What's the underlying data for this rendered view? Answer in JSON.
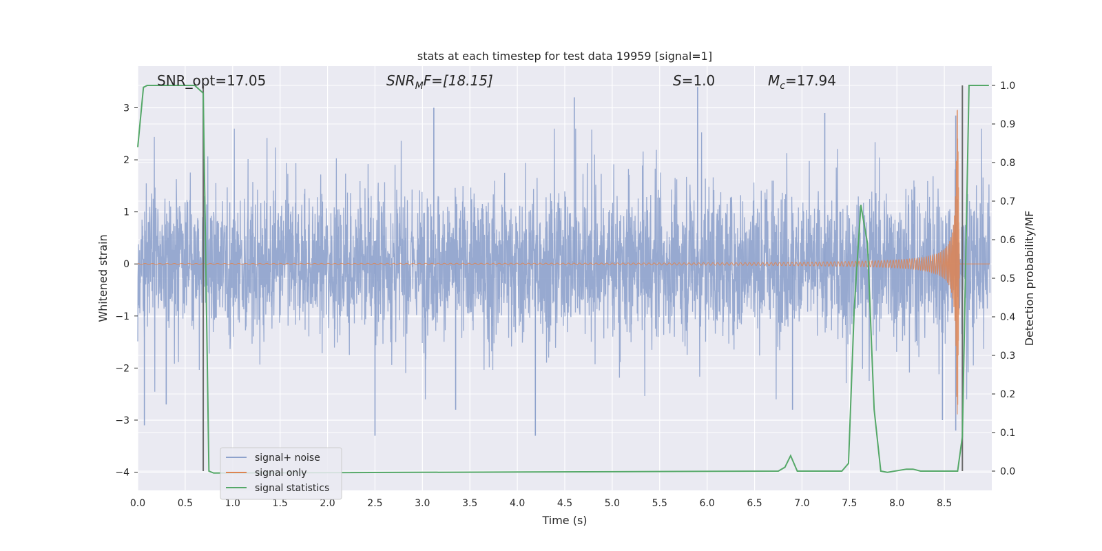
{
  "chart_data": {
    "type": "line",
    "title": "stats at each timestep for test data 19959 [signal=1]",
    "xlabel": "Time (s)",
    "ylabel": "Whitened strain",
    "y2label": "Detection probability/MF",
    "xlim": [
      0.0,
      9.0
    ],
    "ylim": [
      -4.35,
      3.8
    ],
    "y2lim": [
      -0.05,
      1.05
    ],
    "x_ticks": [
      "0.0",
      "0.5",
      "1.0",
      "1.5",
      "2.0",
      "2.5",
      "3.0",
      "3.5",
      "4.0",
      "4.5",
      "5.0",
      "5.5",
      "6.0",
      "6.5",
      "7.0",
      "7.5",
      "8.0",
      "8.5"
    ],
    "x_tick_values": [
      0.0,
      0.5,
      1.0,
      1.5,
      2.0,
      2.5,
      3.0,
      3.5,
      4.0,
      4.5,
      5.0,
      5.5,
      6.0,
      6.5,
      7.0,
      7.5,
      8.0,
      8.5
    ],
    "y_ticks": [
      "3",
      "2",
      "1",
      "0",
      "−1",
      "−2",
      "−3",
      "−4"
    ],
    "y_tick_values": [
      3,
      2,
      1,
      0,
      -1,
      -2,
      -3,
      -4
    ],
    "y2_ticks": [
      "1.0",
      "0.9",
      "0.8",
      "0.7",
      "0.6",
      "0.5",
      "0.4",
      "0.3",
      "0.2",
      "0.1",
      "0.0"
    ],
    "y2_tick_values": [
      1.0,
      0.9,
      0.8,
      0.7,
      0.6,
      0.5,
      0.4,
      0.3,
      0.2,
      0.1,
      0.0
    ],
    "grid": true,
    "legend_position": "lower-left",
    "annotations": {
      "snr_opt": "SNR_opt=17.05",
      "snr_mf_main": "SNR",
      "snr_mf_sub": "M",
      "snr_mf_rest": "F=[18.15]",
      "s_main": "S",
      "s_rest": "=1.0",
      "mc_main": "M",
      "mc_sub": "c",
      "mc_rest": "=17.94"
    },
    "vlines_x": [
      0.69,
      8.69
    ],
    "series": [
      {
        "name": "signal+ noise",
        "color": "#8ea2cc",
        "kind": "noise",
        "axis": "left",
        "x_range": [
          0.0,
          8.98
        ],
        "envelope": 1.0,
        "spikes": [
          {
            "x": 0.07,
            "y": -3.1
          },
          {
            "x": 0.3,
            "y": -2.7
          },
          {
            "x": 0.7,
            "y": 1.3
          },
          {
            "x": 2.5,
            "y": -3.3
          },
          {
            "x": 3.12,
            "y": 3.0
          },
          {
            "x": 3.35,
            "y": -2.8
          },
          {
            "x": 4.19,
            "y": -3.3
          },
          {
            "x": 4.6,
            "y": 3.2
          },
          {
            "x": 5.9,
            "y": 3.4
          },
          {
            "x": 6.9,
            "y": -2.8
          },
          {
            "x": 7.24,
            "y": 2.9
          },
          {
            "x": 8.48,
            "y": -3.0
          },
          {
            "x": 8.62,
            "y": -3.2
          },
          {
            "x": 8.62,
            "y": 2.85
          }
        ]
      },
      {
        "name": "signal only",
        "color": "#dd8452",
        "kind": "chirp",
        "axis": "left",
        "x_range": [
          0.0,
          8.98
        ],
        "merger_time": 8.64,
        "peak_amplitude": 3.0
      },
      {
        "name": "signal statistics",
        "color": "#55a868",
        "kind": "line",
        "axis": "right",
        "x": [
          0.0,
          0.06,
          0.1,
          0.6,
          0.69,
          0.75,
          0.8,
          6.75,
          6.82,
          6.88,
          6.95,
          7.42,
          7.49,
          7.55,
          7.62,
          7.69,
          7.76,
          7.83,
          7.9,
          8.1,
          8.17,
          8.25,
          8.64,
          8.69,
          8.76,
          8.97
        ],
        "y": [
          0.84,
          0.995,
          1.0,
          1.0,
          0.98,
          0.0,
          -0.005,
          0.0,
          0.01,
          0.04,
          0.0,
          0.0,
          0.02,
          0.42,
          0.69,
          0.59,
          0.16,
          0.0,
          -0.003,
          0.005,
          0.005,
          0.0,
          0.0,
          0.09,
          1.0,
          1.0
        ]
      }
    ]
  }
}
